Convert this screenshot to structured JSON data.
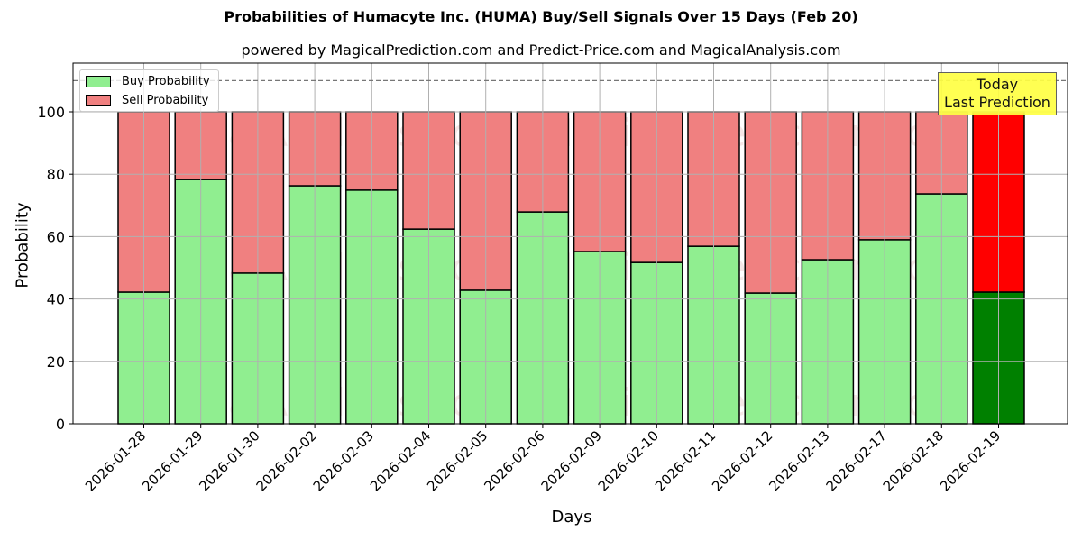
{
  "header": {
    "title": "Probabilities of Humacyte Inc. (HUMA) Buy/Sell Signals Over 15 Days (Feb 20)",
    "subtitle": "powered by MagicalPrediction.com and Predict-Price.com and MagicalAnalysis.com"
  },
  "axes": {
    "xlabel": "Days",
    "ylabel": "Probability",
    "yticks": [
      "0",
      "20",
      "40",
      "60",
      "80",
      "100"
    ]
  },
  "legend": {
    "buy_label": "Buy Probability",
    "sell_label": "Sell Probability"
  },
  "annotation": {
    "line1": "Today",
    "line2": "Last Prediction"
  },
  "watermarks": [
    "MagicalAnalysis.com",
    "MagicalPrediction.com"
  ],
  "colors": {
    "buy": "#90ee90",
    "sell": "#f08080",
    "today_buy": "#008000",
    "today_sell": "#ff0000",
    "annotation_bg": "#ffff44"
  },
  "chart_data": {
    "type": "bar",
    "stacked": true,
    "title": "Probabilities of Humacyte Inc. (HUMA) Buy/Sell Signals Over 15 Days (Feb 20)",
    "subtitle": "powered by MagicalPrediction.com and Predict-Price.com and MagicalAnalysis.com",
    "xlabel": "Days",
    "ylabel": "Probability",
    "ylim": [
      0,
      115
    ],
    "grid": true,
    "legend_position": "upper left",
    "reference_line": 110,
    "categories": [
      "2026-01-28",
      "2026-01-29",
      "2026-01-30",
      "2026-02-02",
      "2026-02-03",
      "2026-02-04",
      "2026-02-05",
      "2026-02-06",
      "2026-02-09",
      "2026-02-10",
      "2026-02-11",
      "2026-02-12",
      "2026-02-13",
      "2026-02-17",
      "2026-02-18",
      "2026-02-19"
    ],
    "series": [
      {
        "name": "Buy Probability",
        "values": [
          42.2,
          78.3,
          48.3,
          76.3,
          74.9,
          62.4,
          42.8,
          67.9,
          55.2,
          51.7,
          56.9,
          41.9,
          52.6,
          59.0,
          73.7,
          42.2
        ]
      },
      {
        "name": "Sell Probability",
        "values": [
          57.8,
          21.7,
          51.7,
          23.7,
          25.1,
          37.6,
          57.2,
          32.1,
          44.8,
          48.3,
          43.1,
          58.1,
          47.4,
          41.0,
          26.3,
          57.8
        ]
      }
    ],
    "annotations": [
      {
        "text": "Today\nLast Prediction",
        "x": "2026-02-19"
      }
    ]
  }
}
